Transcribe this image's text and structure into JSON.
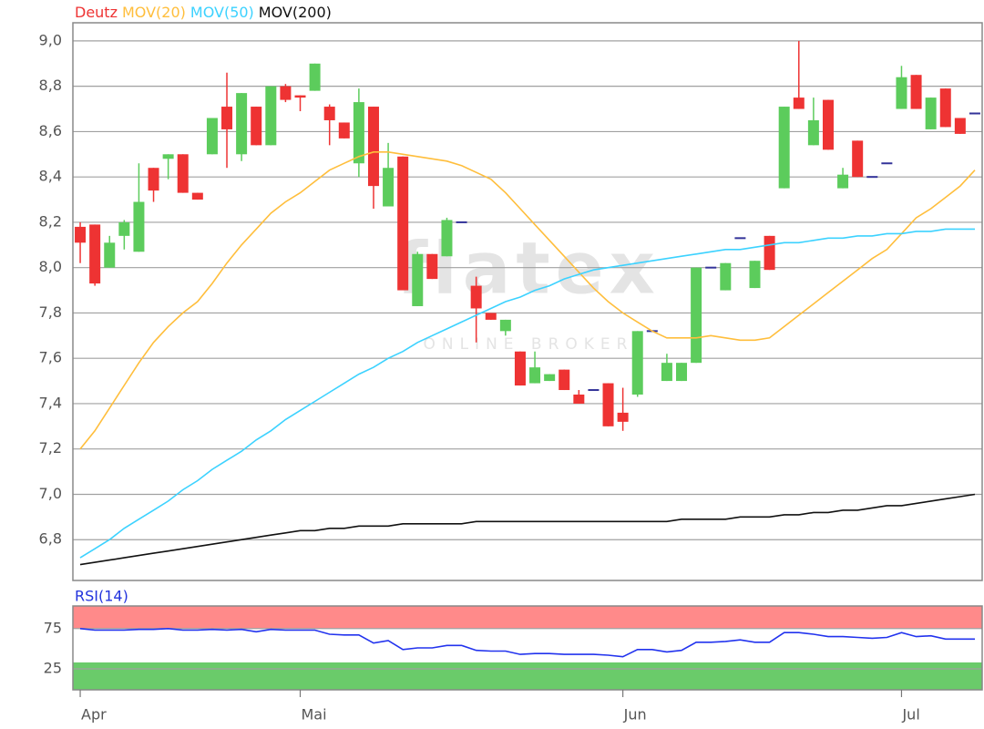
{
  "chart_data": [
    {
      "type": "candlestick",
      "watermark": {
        "logo": "flatex",
        "tagline": "ONLINE BROKER"
      },
      "xlim": [
        -0.5,
        61.5
      ],
      "ylim": [
        6.62,
        9.08
      ],
      "yticks": [
        {
          "value": 6.8,
          "label": "6,8"
        },
        {
          "value": 7.0,
          "label": "7,0"
        },
        {
          "value": 7.2,
          "label": "7,2"
        },
        {
          "value": 7.4,
          "label": "7,4"
        },
        {
          "value": 7.6,
          "label": "7,6"
        },
        {
          "value": 7.8,
          "label": "7,8"
        },
        {
          "value": 8.0,
          "label": "8,0"
        },
        {
          "value": 8.2,
          "label": "8,2"
        },
        {
          "value": 8.4,
          "label": "8,4"
        },
        {
          "value": 8.6,
          "label": "8,6"
        },
        {
          "value": 8.8,
          "label": "8,8"
        },
        {
          "value": 9.0,
          "label": "9,0"
        }
      ],
      "grid": true,
      "series": [
        {
          "name": "Deutz",
          "color": "#ee3333",
          "up_color": "#5ccc5c",
          "doji_color": "#333399",
          "open": [
            8.18,
            8.19,
            8.0,
            8.14,
            8.07,
            8.44,
            8.48,
            8.5,
            8.33,
            8.5,
            8.71,
            8.5,
            8.71,
            8.54,
            8.8,
            8.76,
            8.78,
            8.71,
            8.64,
            8.46,
            8.71,
            8.27,
            8.49,
            7.83,
            8.06,
            8.05,
            8.2,
            7.92,
            7.8,
            7.72,
            7.63,
            7.49,
            7.5,
            7.55,
            7.44,
            7.46,
            7.49,
            7.36,
            7.44,
            7.72,
            7.5,
            7.5,
            7.58,
            8.0,
            7.9,
            8.13,
            7.91,
            8.14,
            8.35,
            8.75,
            8.54,
            8.74,
            8.35,
            8.56,
            8.4,
            8.46,
            8.7,
            8.85,
            8.61,
            8.79,
            8.66,
            8.68
          ],
          "high": [
            8.2,
            8.19,
            8.14,
            8.21,
            8.46,
            8.44,
            8.5,
            8.5,
            8.33,
            8.66,
            8.86,
            8.77,
            8.71,
            8.8,
            8.81,
            8.76,
            8.9,
            8.72,
            8.64,
            8.79,
            8.71,
            8.55,
            8.49,
            8.07,
            8.06,
            8.22,
            8.2,
            7.96,
            7.8,
            7.77,
            7.63,
            7.63,
            7.53,
            7.55,
            7.46,
            7.46,
            7.49,
            7.47,
            7.72,
            7.72,
            7.62,
            7.58,
            8.0,
            8.0,
            8.02,
            8.13,
            8.03,
            8.14,
            8.71,
            9.0,
            8.75,
            8.74,
            8.44,
            8.56,
            8.4,
            8.46,
            8.89,
            8.85,
            8.75,
            8.79,
            8.66,
            8.68
          ],
          "low": [
            8.02,
            7.92,
            8.0,
            8.08,
            8.07,
            8.29,
            8.39,
            8.33,
            8.3,
            8.5,
            8.44,
            8.47,
            8.54,
            8.54,
            8.73,
            8.69,
            8.78,
            8.54,
            8.57,
            8.4,
            8.26,
            8.27,
            7.9,
            7.83,
            7.95,
            8.05,
            8.2,
            7.67,
            7.77,
            7.7,
            7.48,
            7.49,
            7.5,
            7.46,
            7.4,
            7.46,
            7.3,
            7.28,
            7.43,
            7.72,
            7.5,
            7.5,
            7.58,
            8.0,
            7.9,
            8.13,
            7.91,
            7.99,
            8.35,
            8.7,
            8.54,
            8.52,
            8.35,
            8.4,
            8.4,
            8.46,
            8.7,
            8.7,
            8.61,
            8.62,
            8.59,
            8.68
          ],
          "close": [
            8.11,
            7.93,
            8.11,
            8.2,
            8.29,
            8.34,
            8.5,
            8.33,
            8.3,
            8.66,
            8.61,
            8.77,
            8.54,
            8.8,
            8.74,
            8.75,
            8.9,
            8.65,
            8.57,
            8.73,
            8.36,
            8.44,
            7.9,
            8.06,
            7.95,
            8.21,
            8.2,
            7.82,
            7.77,
            7.77,
            7.48,
            7.56,
            7.53,
            7.46,
            7.4,
            7.46,
            7.3,
            7.32,
            7.72,
            7.72,
            7.58,
            7.58,
            8.0,
            8.0,
            8.02,
            8.13,
            8.03,
            7.99,
            8.71,
            8.7,
            8.65,
            8.52,
            8.41,
            8.4,
            8.4,
            8.46,
            8.84,
            8.7,
            8.75,
            8.62,
            8.59,
            8.68
          ]
        },
        {
          "name": "MOV(20)",
          "color": "#ffbe3c",
          "values": [
            7.2,
            7.28,
            7.38,
            7.48,
            7.58,
            7.67,
            7.74,
            7.8,
            7.85,
            7.93,
            8.02,
            8.1,
            8.17,
            8.24,
            8.29,
            8.33,
            8.38,
            8.43,
            8.46,
            8.49,
            8.51,
            8.51,
            8.5,
            8.49,
            8.48,
            8.47,
            8.45,
            8.42,
            8.39,
            8.33,
            8.26,
            8.19,
            8.12,
            8.05,
            7.98,
            7.91,
            7.85,
            7.8,
            7.76,
            7.72,
            7.69,
            7.69,
            7.69,
            7.7,
            7.69,
            7.68,
            7.68,
            7.69,
            7.74,
            7.79,
            7.84,
            7.89,
            7.94,
            7.99,
            8.04,
            8.08,
            8.15,
            8.22,
            8.26,
            8.31,
            8.36,
            8.43
          ]
        },
        {
          "name": "MOV(50)",
          "color": "#3cd2ff",
          "values": [
            6.72,
            6.76,
            6.8,
            6.85,
            6.89,
            6.93,
            6.97,
            7.02,
            7.06,
            7.11,
            7.15,
            7.19,
            7.24,
            7.28,
            7.33,
            7.37,
            7.41,
            7.45,
            7.49,
            7.53,
            7.56,
            7.6,
            7.63,
            7.67,
            7.7,
            7.73,
            7.76,
            7.79,
            7.82,
            7.85,
            7.87,
            7.9,
            7.92,
            7.95,
            7.97,
            7.99,
            8.0,
            8.01,
            8.02,
            8.03,
            8.04,
            8.05,
            8.06,
            8.07,
            8.08,
            8.08,
            8.09,
            8.1,
            8.11,
            8.11,
            8.12,
            8.13,
            8.13,
            8.14,
            8.14,
            8.15,
            8.15,
            8.16,
            8.16,
            8.17,
            8.17,
            8.17
          ]
        },
        {
          "name": "MOV(200)",
          "color": "#111111",
          "values": [
            6.69,
            6.7,
            6.71,
            6.72,
            6.73,
            6.74,
            6.75,
            6.76,
            6.77,
            6.78,
            6.79,
            6.8,
            6.81,
            6.82,
            6.83,
            6.84,
            6.84,
            6.85,
            6.85,
            6.86,
            6.86,
            6.86,
            6.87,
            6.87,
            6.87,
            6.87,
            6.87,
            6.88,
            6.88,
            6.88,
            6.88,
            6.88,
            6.88,
            6.88,
            6.88,
            6.88,
            6.88,
            6.88,
            6.88,
            6.88,
            6.88,
            6.89,
            6.89,
            6.89,
            6.89,
            6.9,
            6.9,
            6.9,
            6.91,
            6.91,
            6.92,
            6.92,
            6.93,
            6.93,
            6.94,
            6.95,
            6.95,
            6.96,
            6.97,
            6.98,
            6.99,
            7.0
          ]
        }
      ]
    },
    {
      "type": "line",
      "title": "RSI(14)",
      "title_color": "#2233dd",
      "xlim": [
        -0.5,
        61.5
      ],
      "xticks": [
        {
          "value": 0,
          "label": "Apr"
        },
        {
          "value": 15,
          "label": "Mai"
        },
        {
          "value": 37,
          "label": "Jun"
        },
        {
          "value": 56,
          "label": "Jul"
        }
      ],
      "ylim": [
        -1,
        103
      ],
      "yticks": [
        25,
        75
      ],
      "grid": true,
      "zones": [
        {
          "min": 75,
          "max": 103,
          "color": "#ff8a8a"
        },
        {
          "min": -1,
          "max": 33,
          "color": "#6acb6a"
        }
      ],
      "series": [
        {
          "name": "RSI(14)",
          "color": "#2233ee",
          "values": [
            75,
            73,
            73,
            73,
            74,
            74,
            75,
            73,
            73,
            74,
            73,
            74,
            71,
            74,
            73,
            73,
            73,
            68,
            67,
            67,
            57,
            60,
            49,
            51,
            51,
            54,
            54,
            48,
            47,
            47,
            43,
            44,
            44,
            43,
            43,
            43,
            42,
            40,
            49,
            49,
            46,
            48,
            58,
            58,
            59,
            61,
            58,
            58,
            70,
            70,
            68,
            65,
            65,
            64,
            63,
            64,
            70,
            65,
            66,
            62,
            62,
            62
          ]
        }
      ]
    }
  ]
}
